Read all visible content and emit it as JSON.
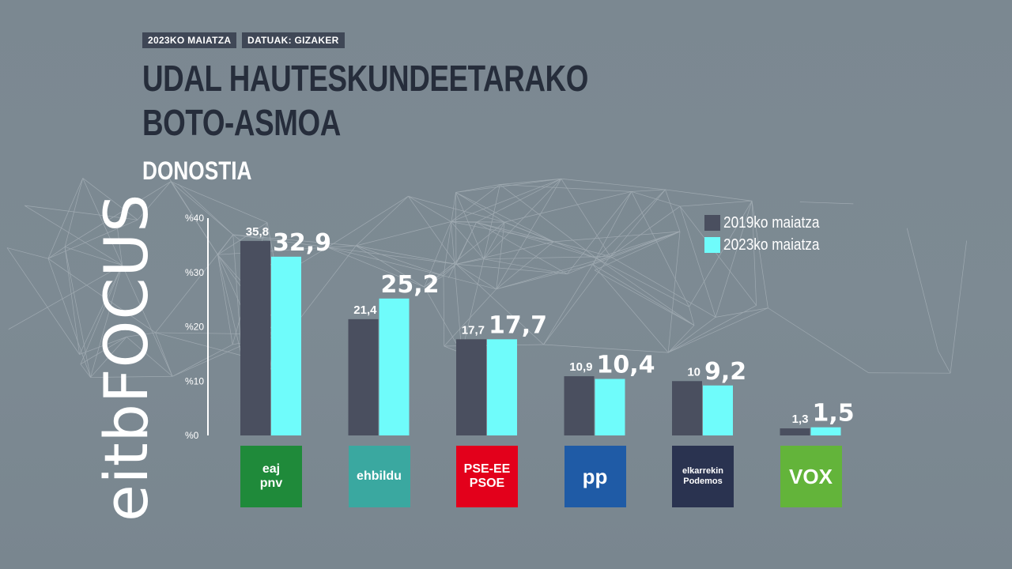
{
  "header": {
    "date_tag": "2023KO MAIATZA",
    "source_tag": "DATUAK: GIZAKER",
    "title_line_1": "UDAL HAUTESKUNDEETARAKO",
    "title_line_2": "BOTO-ASMOA",
    "subtitle": "DONOSTIA"
  },
  "brand": {
    "text": "eitbFOCUS",
    "icon": "magnifier-icon"
  },
  "legend": [
    {
      "label": "2019ko maiatza",
      "color": "#4a4f5f"
    },
    {
      "label": "2023ko maiatza",
      "color": "#6ffcfb"
    }
  ],
  "colors": {
    "background": "#7b8891",
    "title": "#262d3b",
    "series_2019": "#4a4f5f",
    "series_2023": "#6ffcfb"
  },
  "parties": [
    {
      "name": "eaj pnv",
      "logo_color": "#1f8a3a",
      "logo_icon": "eaj-pnv-logo-icon",
      "logo_lines": [
        "eaj",
        "pnv"
      ]
    },
    {
      "name": "ehbildu",
      "logo_color": "#3aa8a0",
      "logo_icon": "ehbildu-logo-icon",
      "logo_lines": [
        "ehbildu"
      ]
    },
    {
      "name": "PSE-EE PSOE",
      "logo_color": "#e3001b",
      "logo_icon": "psoe-logo-icon",
      "logo_lines": [
        "PSE-EE",
        "PSOE"
      ]
    },
    {
      "name": "PP",
      "logo_color": "#1f5ba6",
      "logo_icon": "pp-logo-icon",
      "logo_lines": [
        "pp"
      ]
    },
    {
      "name": "elkarrekin Podemos",
      "logo_color": "#2a3350",
      "logo_icon": "elkarrekin-logo-icon",
      "logo_lines": [
        "elkarrekin",
        "Podemos"
      ]
    },
    {
      "name": "VOX",
      "logo_color": "#63b43a",
      "logo_icon": "vox-logo-icon",
      "logo_lines": [
        "VOX"
      ]
    }
  ],
  "chart_data": {
    "type": "bar",
    "title": "UDAL HAUTESKUNDEETARAKO BOTO-ASMOA",
    "subtitle": "DONOSTIA",
    "categories": [
      "EAJ-PNV",
      "EH Bildu",
      "PSE-EE PSOE",
      "PP",
      "Elkarrekin Podemos",
      "VOX"
    ],
    "series": [
      {
        "name": "2019ko maiatza",
        "values": [
          35.8,
          21.4,
          17.7,
          10.9,
          10,
          1.3
        ],
        "labels": [
          "35,8",
          "21,4",
          "17,7",
          "10,9",
          "10",
          "1,3"
        ]
      },
      {
        "name": "2023ko maiatza",
        "values": [
          32.9,
          25.2,
          17.7,
          10.4,
          9.2,
          1.5
        ],
        "labels": [
          "32,9",
          "25,2",
          "17,7",
          "10,4",
          "9,2",
          "1,5"
        ]
      }
    ],
    "yticks": [
      "%0",
      "%10",
      "%20",
      "%30",
      "%40"
    ],
    "ylim": [
      0,
      40
    ],
    "grid": false,
    "legend_position": "top-right"
  }
}
